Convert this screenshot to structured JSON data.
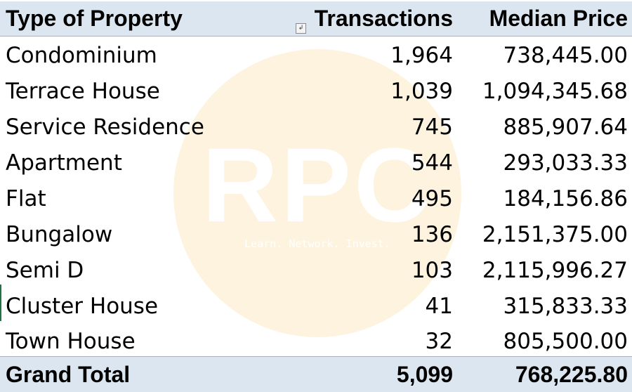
{
  "watermark": {
    "logo_text": "RPC",
    "tagline": "Learn. Network. Invest."
  },
  "table": {
    "headers": {
      "type": "Type of Property",
      "transactions": "Transactions",
      "median_price": "Median Price"
    },
    "rows": [
      {
        "type": "Condominium",
        "transactions": "1,964",
        "median_price": "738,445.00"
      },
      {
        "type": "Terrace House",
        "transactions": "1,039",
        "median_price": "1,094,345.68"
      },
      {
        "type": "Service Residence",
        "transactions": "745",
        "median_price": "885,907.64"
      },
      {
        "type": "Apartment",
        "transactions": "544",
        "median_price": "293,033.33"
      },
      {
        "type": "Flat",
        "transactions": "495",
        "median_price": "184,156.86"
      },
      {
        "type": "Bungalow",
        "transactions": "136",
        "median_price": "2,151,375.00"
      },
      {
        "type": "Semi D",
        "transactions": "103",
        "median_price": "2,115,996.27"
      },
      {
        "type": "Cluster House",
        "transactions": "41",
        "median_price": "315,833.33"
      },
      {
        "type": "Town House",
        "transactions": "32",
        "median_price": "805,500.00"
      }
    ],
    "total": {
      "label": "Grand Total",
      "transactions": "5,099",
      "median_price": "768,225.80"
    }
  },
  "filter_icon_glyph": "↲",
  "colors": {
    "header_fill": "#dce6f1",
    "watermark_fill": "#fdf3de",
    "selection_edge": "#217346"
  }
}
